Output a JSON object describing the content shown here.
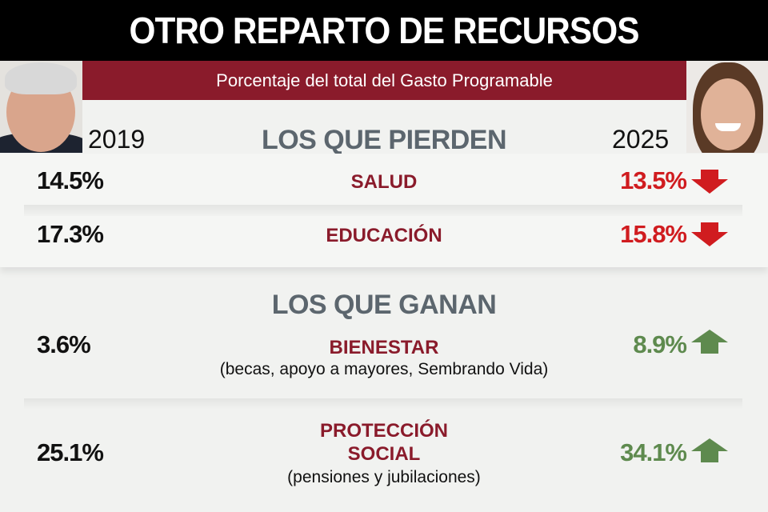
{
  "title": "OTRO REPARTO DE RECURSOS",
  "subtitle": "Porcentaje del total del Gasto Programable",
  "colors": {
    "banner": "#8a1b2b",
    "category": "#8a1b2b",
    "decrease": "#d01c1f",
    "increase": "#5e8a4e",
    "section": "#5c666e"
  },
  "chart_data": {
    "type": "table",
    "columns": [
      "2019",
      "",
      "2025"
    ],
    "groups": [
      {
        "label": "LOS QUE PIERDEN",
        "trend": "down",
        "rows": [
          {
            "category": "SALUD",
            "note": "",
            "v2019": "14.5%",
            "v2025": "13.5%"
          },
          {
            "category": "EDUCACIÓN",
            "note": "",
            "v2019": "17.3%",
            "v2025": "15.8%"
          }
        ]
      },
      {
        "label": "LOS QUE GANAN",
        "trend": "up",
        "rows": [
          {
            "category": "BIENESTAR",
            "note": "(becas, apoyo a mayores, Sembrando Vida)",
            "v2019": "3.6%",
            "v2025": "8.9%"
          },
          {
            "category": "PROTECCIÓN",
            "category2": "SOCIAL",
            "note": "(pensiones y jubilaciones)",
            "v2019": "25.1%",
            "v2025": "34.1%"
          }
        ]
      }
    ]
  }
}
